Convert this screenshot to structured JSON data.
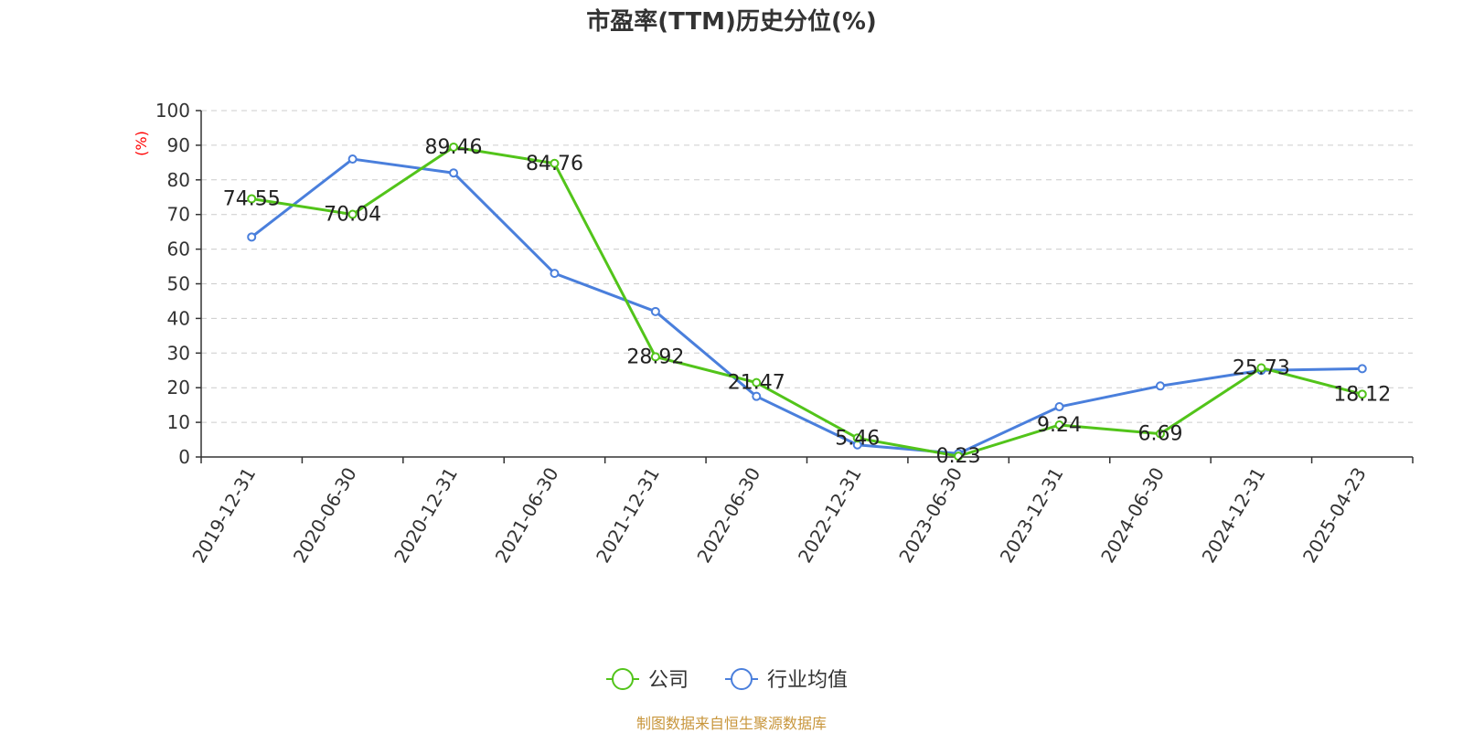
{
  "chart_data": {
    "type": "line",
    "title": "市盈率(TTM)历史分位(%)",
    "ylabel": "(%)",
    "ylim": [
      0,
      100
    ],
    "yticks": [
      0,
      10,
      20,
      30,
      40,
      50,
      60,
      70,
      80,
      90,
      100
    ],
    "grid": true,
    "legend_position": "bottom-center",
    "categories": [
      "2019-12-31",
      "2020-06-30",
      "2020-12-31",
      "2021-06-30",
      "2021-12-31",
      "2022-06-30",
      "2022-12-31",
      "2023-06-30",
      "2023-12-31",
      "2024-06-30",
      "2024-12-31",
      "2025-04-23"
    ],
    "series": [
      {
        "name": "公司",
        "color": "#52c41a",
        "values": [
          74.55,
          70.04,
          89.46,
          84.76,
          28.92,
          21.47,
          5.46,
          0.23,
          9.24,
          6.69,
          25.73,
          18.12
        ],
        "labels": [
          "74.55",
          "70.04",
          "89.46",
          "84.76",
          "28.92",
          "21.47",
          "5.46",
          "0.23",
          "9.24",
          "6.69",
          "25.73",
          "18.12"
        ]
      },
      {
        "name": "行业均值",
        "color": "#4a7fdc",
        "values": [
          63.5,
          86.0,
          82.0,
          53.0,
          42.0,
          17.5,
          3.5,
          1.0,
          14.5,
          20.5,
          25.0,
          25.5
        ]
      }
    ]
  },
  "source_note": "制图数据来自恒生聚源数据库",
  "colors": {
    "axis": "#333333",
    "grid": "#cccccc",
    "ylabel": "#ff0000",
    "title": "#333333",
    "source": "#c8963c"
  }
}
